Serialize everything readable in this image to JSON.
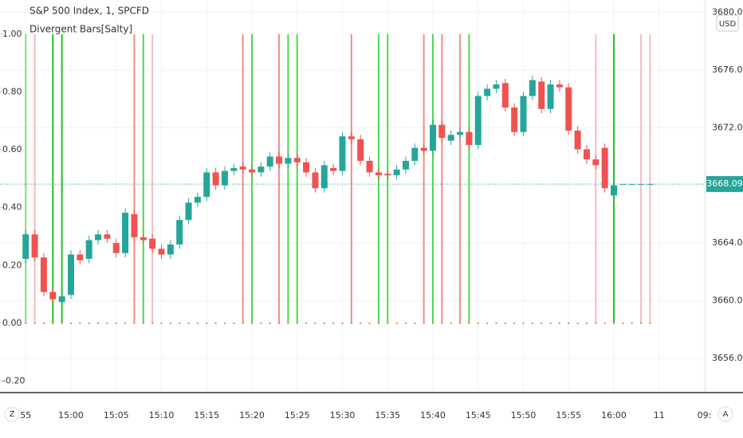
{
  "chart_data": {
    "type": "candlestick",
    "title": "S&P 500 Index, 1, SPCFD",
    "indicator_name": "Divergent Bars[Salty]",
    "currency_button": "USD",
    "left_button": "Z",
    "right_button": "A",
    "up_color": "#26a69a",
    "down_color": "#ef5350",
    "grid": true,
    "xlim": [
      -7.84,
      70.13
    ],
    "xticks": [
      {
        "value": -5,
        "label": "55"
      },
      {
        "value": 0,
        "label": "15:00"
      },
      {
        "value": 5,
        "label": "15:05"
      },
      {
        "value": 10,
        "label": "15:10"
      },
      {
        "value": 15,
        "label": "15:15"
      },
      {
        "value": 20,
        "label": "15:20"
      },
      {
        "value": 25,
        "label": "15:25"
      },
      {
        "value": 30,
        "label": "15:30"
      },
      {
        "value": 35,
        "label": "15:35"
      },
      {
        "value": 40,
        "label": "15:40"
      },
      {
        "value": 45,
        "label": "15:45"
      },
      {
        "value": 50,
        "label": "15:50"
      },
      {
        "value": 55,
        "label": "15:55"
      },
      {
        "value": 60,
        "label": "16:00"
      },
      {
        "value": 65,
        "label": "11"
      },
      {
        "value": 70,
        "label": "09:"
      }
    ],
    "ylim": [
      -0.24,
      1.118
    ],
    "yticks": [
      {
        "value": -0.2,
        "label": "-0.20"
      },
      {
        "value": 0,
        "label": "0.00"
      },
      {
        "value": 0.2,
        "label": "0.20"
      },
      {
        "value": 0.4,
        "label": "0.40"
      },
      {
        "value": 0.6,
        "label": "0.60"
      },
      {
        "value": 0.8,
        "label": "0.80"
      },
      {
        "value": 1,
        "label": "1.00"
      }
    ],
    "y2lim": [
      3653.62,
      3680.86
    ],
    "y2ticks": [
      {
        "value": 3656,
        "label": "3656.00"
      },
      {
        "value": 3660,
        "label": "3660.00"
      },
      {
        "value": 3664,
        "label": "3664.00"
      },
      {
        "value": 3668,
        "label": "3668.00"
      },
      {
        "value": 3672,
        "label": "3672.00"
      },
      {
        "value": 3676,
        "label": "3676.00"
      },
      {
        "value": 3680,
        "label": "3680.00"
      }
    ],
    "last_price": 3668.09,
    "last_price_color": "#26a69a",
    "candles": {
      "x": [
        -5,
        -4,
        -3,
        -2,
        -1,
        0,
        1,
        2,
        3,
        4,
        5,
        6,
        7,
        8,
        9,
        10,
        11,
        12,
        13,
        14,
        15,
        16,
        17,
        18,
        19,
        20,
        21,
        22,
        23,
        24,
        25,
        26,
        27,
        28,
        29,
        30,
        31,
        32,
        33,
        34,
        35,
        36,
        37,
        38,
        39,
        40,
        41,
        42,
        43,
        44,
        45,
        46,
        47,
        48,
        49,
        50,
        51,
        52,
        53,
        54,
        55,
        56,
        57,
        58,
        59,
        60,
        61,
        62,
        63,
        64
      ],
      "open": [
        3662.9,
        3664.6,
        3663.0,
        3660.6,
        3659.9,
        3660.4,
        3663.2,
        3662.9,
        3664.2,
        3664.6,
        3664.0,
        3663.3,
        3666.0,
        3664.4,
        3664.3,
        3663.6,
        3663.2,
        3663.9,
        3665.6,
        3666.8,
        3667.2,
        3668.9,
        3668.0,
        3669.0,
        3669.3,
        3669.1,
        3668.9,
        3669.3,
        3670.0,
        3669.5,
        3669.9,
        3669.6,
        3668.9,
        3667.8,
        3669.2,
        3669.0,
        3671.4,
        3671.2,
        3669.7,
        3668.9,
        3668.8,
        3668.7,
        3669.1,
        3669.7,
        3670.6,
        3670.4,
        3672.2,
        3671.1,
        3671.5,
        3671.7,
        3670.8,
        3674.2,
        3674.7,
        3675.1,
        3673.4,
        3671.7,
        3674.2,
        3675.2,
        3673.3,
        3675.0,
        3674.8,
        3671.8,
        3670.5,
        3669.8,
        3670.6,
        3667.3,
        3668.09,
        3668.09,
        3668.09,
        3668.09
      ],
      "high": [
        3664.9,
        3664.9,
        3663.3,
        3660.9,
        3660.6,
        3663.5,
        3663.5,
        3664.5,
        3664.9,
        3664.9,
        3664.3,
        3666.4,
        3666.3,
        3664.7,
        3664.6,
        3663.9,
        3664.2,
        3665.9,
        3667.1,
        3667.5,
        3669.2,
        3669.2,
        3669.3,
        3669.5,
        3669.6,
        3669.4,
        3669.6,
        3670.3,
        3670.3,
        3670.2,
        3670.2,
        3669.9,
        3669.2,
        3669.7,
        3669.5,
        3671.7,
        3671.7,
        3671.5,
        3670.0,
        3669.2,
        3669.1,
        3669.4,
        3670.0,
        3670.9,
        3670.9,
        3672.5,
        3672.5,
        3671.8,
        3672.0,
        3672.0,
        3674.5,
        3675.0,
        3675.3,
        3675.4,
        3673.7,
        3674.5,
        3675.6,
        3675.5,
        3675.3,
        3675.3,
        3675.1,
        3672.1,
        3670.8,
        3670.1,
        3670.9,
        3668.3,
        3668.09,
        3668.09,
        3668.09,
        3668.09
      ],
      "low": [
        3662.6,
        3662.7,
        3660.3,
        3659.8,
        3659.6,
        3660.1,
        3662.5,
        3662.6,
        3663.9,
        3664.0,
        3663.0,
        3663.0,
        3664.1,
        3663.9,
        3663.3,
        3662.9,
        3662.9,
        3663.6,
        3665.3,
        3666.5,
        3666.9,
        3667.7,
        3667.7,
        3668.7,
        3668.8,
        3668.6,
        3668.6,
        3669.0,
        3669.2,
        3669.2,
        3669.3,
        3668.6,
        3667.5,
        3667.5,
        3668.7,
        3668.7,
        3670.9,
        3669.4,
        3668.6,
        3668.4,
        3668.4,
        3668.4,
        3668.8,
        3669.4,
        3670.1,
        3670.1,
        3671.0,
        3670.8,
        3671.2,
        3670.5,
        3670.5,
        3673.9,
        3674.4,
        3673.1,
        3671.4,
        3671.4,
        3673.9,
        3673.0,
        3673.0,
        3674.5,
        3671.5,
        3670.2,
        3669.5,
        3669.1,
        3667.5,
        3667.0,
        3668.09,
        3668.09,
        3668.09,
        3668.09
      ],
      "close": [
        3664.6,
        3663.0,
        3660.6,
        3660.1,
        3660.3,
        3663.2,
        3662.8,
        3664.2,
        3664.6,
        3664.3,
        3663.3,
        3666.1,
        3664.4,
        3664.2,
        3663.6,
        3663.2,
        3663.9,
        3665.6,
        3666.8,
        3667.2,
        3668.9,
        3668.0,
        3669.0,
        3669.2,
        3669.1,
        3668.9,
        3669.3,
        3670.0,
        3669.5,
        3669.9,
        3669.6,
        3668.9,
        3667.8,
        3669.4,
        3669.0,
        3671.4,
        3671.2,
        3669.7,
        3668.9,
        3668.7,
        3668.7,
        3669.1,
        3669.7,
        3670.6,
        3670.4,
        3672.2,
        3671.3,
        3671.5,
        3671.7,
        3670.8,
        3674.2,
        3674.7,
        3675.0,
        3673.4,
        3671.7,
        3674.2,
        3675.3,
        3673.3,
        3675.0,
        3674.8,
        3671.8,
        3670.5,
        3669.8,
        3669.4,
        3667.8,
        3668.0,
        3668.09,
        3668.09,
        3668.09,
        3668.09
      ]
    },
    "signals": {
      "x": [
        -5,
        -4,
        -2,
        -1,
        7,
        8,
        9,
        19,
        20,
        23,
        24,
        25,
        31,
        34,
        35,
        39,
        40,
        41,
        43,
        44,
        58,
        60,
        63,
        64
      ],
      "values": [
        1,
        1,
        1,
        1,
        1,
        1,
        1,
        1,
        1,
        1,
        1,
        1,
        1,
        1,
        1,
        1,
        1,
        1,
        1,
        1,
        1,
        1,
        1,
        1
      ],
      "colors": [
        "#7ee07e",
        "#f8bbbb",
        "#1fc21f",
        "#1fc21f",
        "#f28b8b",
        "#4cd94c",
        "#f8bbbb",
        "#f28b8b",
        "#4cd94c",
        "#f28b8b",
        "#4cd94c",
        "#4cd94c",
        "#f28b8b",
        "#4cd94c",
        "#4cd94c",
        "#f28b8b",
        "#4cd94c",
        "#f28b8b",
        "#f28b8b",
        "#4cd94c",
        "#f8bbbb",
        "#1fc21f",
        "#f8bbbb",
        "#f8bbbb"
      ]
    },
    "dots": {
      "color": "#e08a4a",
      "x": [
        -5,
        -4,
        -3,
        -2,
        -1,
        0,
        1,
        2,
        3,
        4,
        5,
        6,
        7,
        8,
        9,
        10,
        11,
        12,
        13,
        14,
        15,
        16,
        17,
        18,
        19,
        20,
        21,
        22,
        23,
        24,
        25,
        26,
        27,
        28,
        29,
        30,
        31,
        32,
        33,
        34,
        35,
        36,
        37,
        38,
        39,
        40,
        41,
        42,
        43,
        44,
        45,
        46,
        47,
        48,
        49,
        50,
        51,
        52,
        53,
        54,
        55,
        56,
        57,
        58,
        59,
        60,
        61,
        62,
        63,
        64
      ],
      "values": [
        0,
        0,
        0,
        0,
        0,
        0,
        0,
        0,
        0,
        0,
        0,
        0,
        0,
        0,
        0,
        0,
        0,
        0,
        0,
        0,
        0,
        0,
        0,
        0,
        0,
        0,
        0,
        0,
        0,
        0,
        0,
        0,
        0,
        0,
        0,
        0,
        0,
        0,
        0,
        0,
        0,
        0,
        0,
        0,
        0,
        0,
        0,
        0,
        0,
        0,
        0,
        0,
        0,
        0,
        0,
        0,
        0,
        0,
        0,
        0,
        0,
        0,
        0,
        0,
        0,
        0,
        0,
        0,
        0,
        0
      ]
    }
  }
}
